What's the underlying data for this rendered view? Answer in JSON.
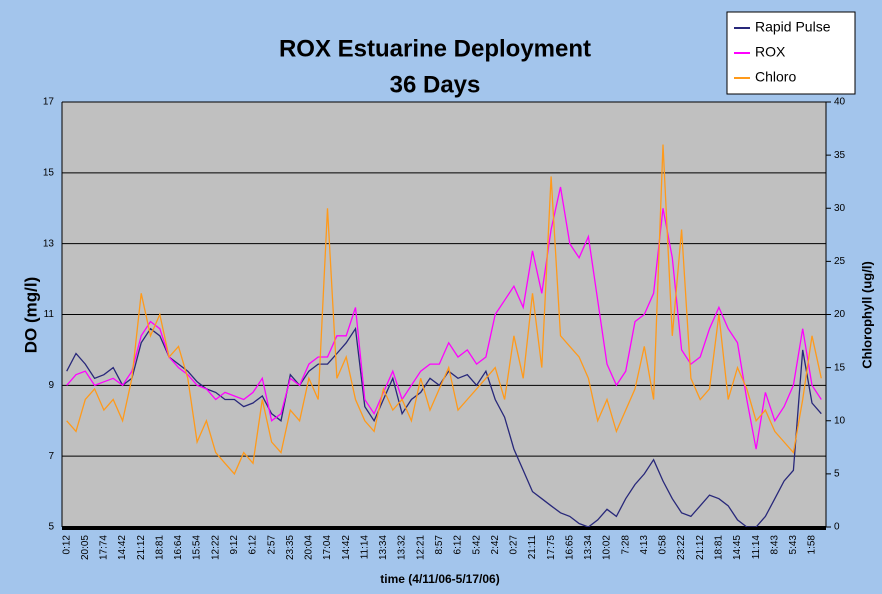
{
  "chart_data": {
    "type": "line",
    "title": "ROX Estuarine Deployment",
    "subtitle": "36 Days",
    "y_label": "DO (mg/l)",
    "y2_label": "Chlorophyll (ug/l)",
    "x_label": "time (4/11/06-5/17/06)",
    "categories": [
      "0:12",
      null,
      "20:05",
      null,
      "17:74",
      null,
      "14:42",
      null,
      "21:12",
      null,
      "18:81",
      null,
      "16:64",
      null,
      "15:54",
      null,
      "12:22",
      null,
      "9:12",
      null,
      "6:12",
      null,
      "2:57",
      null,
      "23:35",
      null,
      "20:04",
      null,
      "17:04",
      null,
      "14:42",
      null,
      "11:14",
      null,
      "13:34",
      null,
      "13:32",
      null,
      "12:21",
      null,
      "8:57",
      null,
      "6:12",
      null,
      "5:42",
      null,
      "2:42",
      null,
      "0:27",
      null,
      "21:11",
      null,
      "17:75",
      null,
      "16:65",
      null,
      "13:34",
      null,
      "10:02",
      null,
      "7:28",
      null,
      "4:13",
      null,
      "0:58",
      null,
      "23:22",
      null,
      "21:12",
      null,
      "18:81",
      null,
      "14:45",
      null,
      "11:14",
      null,
      "8:43",
      null,
      "5:43",
      null,
      "1:58",
      null
    ],
    "series": [
      {
        "name": "Rapid Pulse",
        "color": "#28287a",
        "values": [
          9.4,
          9.9,
          9.6,
          9.2,
          9.3,
          9.5,
          9.0,
          9.2,
          10.2,
          10.6,
          10.4,
          9.8,
          9.6,
          9.4,
          9.1,
          8.9,
          8.8,
          8.6,
          8.6,
          8.4,
          8.5,
          8.7,
          8.2,
          8.0,
          9.3,
          9.0,
          9.4,
          9.6,
          9.6,
          9.9,
          10.2,
          10.6,
          8.4,
          8.0,
          8.6,
          9.2,
          8.2,
          8.6,
          8.8,
          9.2,
          9.0,
          9.4,
          9.2,
          9.3,
          9.0,
          9.4,
          8.6,
          8.1,
          7.2,
          6.6,
          6.0,
          5.8,
          5.6,
          5.4,
          5.3,
          5.1,
          5.0,
          5.2,
          5.5,
          5.3,
          5.8,
          6.2,
          6.5,
          6.9,
          6.3,
          5.8,
          5.4,
          5.3,
          5.6,
          5.9,
          5.8,
          5.6,
          5.2,
          5.0,
          5.0,
          5.3,
          5.8,
          6.3,
          6.6,
          10.0,
          8.5,
          8.2
        ]
      },
      {
        "name": "ROX",
        "color": "#ff00ff",
        "values": [
          9.0,
          9.3,
          9.4,
          9.0,
          9.1,
          9.2,
          9.0,
          9.4,
          10.4,
          10.8,
          10.6,
          9.8,
          9.5,
          9.3,
          9.0,
          8.9,
          8.6,
          8.8,
          8.7,
          8.6,
          8.8,
          9.2,
          8.0,
          8.2,
          9.2,
          9.0,
          9.6,
          9.8,
          9.8,
          10.4,
          10.4,
          11.2,
          8.6,
          8.2,
          8.8,
          9.4,
          8.6,
          9.0,
          9.4,
          9.6,
          9.6,
          10.2,
          9.8,
          10.0,
          9.6,
          9.8,
          11.0,
          11.4,
          11.8,
          11.2,
          12.8,
          11.6,
          13.4,
          14.6,
          13.0,
          12.6,
          13.2,
          11.4,
          9.6,
          9.0,
          9.4,
          10.8,
          11.0,
          11.6,
          14.0,
          12.6,
          10.0,
          9.6,
          9.8,
          10.6,
          11.2,
          10.6,
          10.2,
          8.6,
          7.2,
          8.8,
          8.0,
          8.4,
          9.0,
          10.6,
          9.0,
          8.6
        ]
      },
      {
        "name": "Chloro",
        "color": "#ff9a1a",
        "axis": "y2",
        "values": [
          10,
          9,
          12,
          13,
          11,
          12,
          10,
          14,
          22,
          18,
          20,
          16,
          17,
          14,
          8,
          10,
          7,
          6,
          5,
          7,
          6,
          12,
          8,
          7,
          11,
          10,
          14,
          12,
          30,
          14,
          16,
          12,
          10,
          9,
          13,
          11,
          12,
          10,
          14,
          11,
          13,
          15,
          11,
          12,
          13,
          14,
          15,
          12,
          18,
          14,
          22,
          15,
          33,
          18,
          17,
          16,
          14,
          10,
          12,
          9,
          11,
          13,
          17,
          12,
          36,
          18,
          28,
          14,
          12,
          13,
          20,
          12,
          15,
          13,
          10,
          11,
          9,
          8,
          7,
          12,
          18,
          14
        ]
      }
    ],
    "ylim": [
      5,
      17
    ],
    "yticks": [
      5,
      7,
      9,
      11,
      13,
      15,
      17
    ],
    "y2lim": [
      0,
      40
    ],
    "y2ticks": [
      0,
      5,
      10,
      15,
      20,
      25,
      30,
      35,
      40
    ],
    "grid": true,
    "legend": "top-right"
  }
}
